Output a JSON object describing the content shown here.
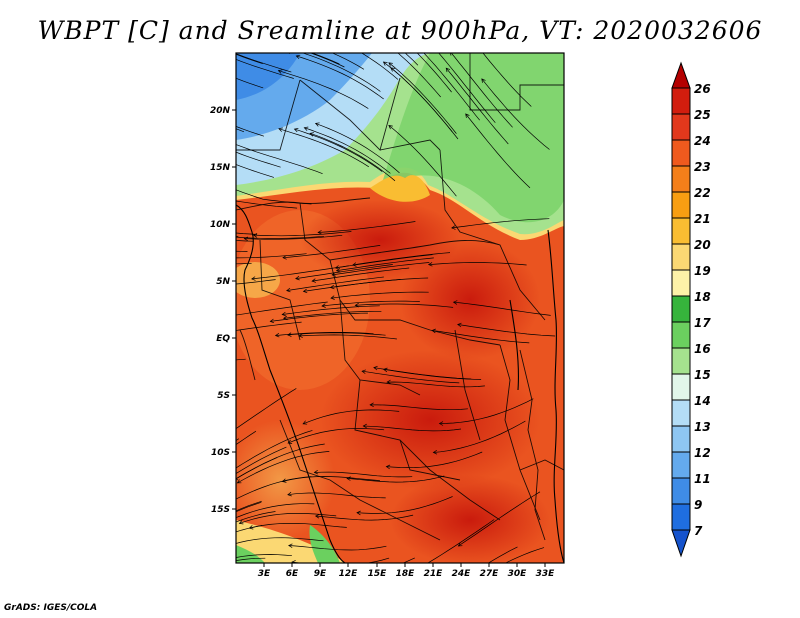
{
  "title": "WBPT [C] and Sreamline at 900hPa, VT: 2020032606",
  "footer": "GrADS: IGES/COLA",
  "map": {
    "lat_labels": [
      "20N",
      "15N",
      "10N",
      "5N",
      "EQ",
      "5S",
      "10S",
      "15S"
    ],
    "lat_values": [
      20,
      15,
      10,
      5,
      0,
      -5,
      -10,
      -15
    ],
    "lon_labels": [
      "3E",
      "6E",
      "9E",
      "12E",
      "15E",
      "18E",
      "21E",
      "24E",
      "27E",
      "30E",
      "33E"
    ],
    "lon_values": [
      3,
      6,
      9,
      12,
      15,
      18,
      21,
      24,
      27,
      30,
      33
    ]
  },
  "colorbar": {
    "labels": [
      "26",
      "25",
      "24",
      "23",
      "22",
      "21",
      "20",
      "19",
      "18",
      "17",
      "16",
      "15",
      "14",
      "13",
      "12",
      "11",
      "9",
      "7"
    ],
    "colors": [
      "#b40000",
      "#d21d0e",
      "#e2381c",
      "#ef5a1e",
      "#f47f1a",
      "#f89e12",
      "#f9bd32",
      "#fbd873",
      "#fdf2a8",
      "#36b43c",
      "#6bd05f",
      "#a5e28e",
      "#e2f6e9",
      "#b4ddf6",
      "#8ec6f2",
      "#64aaed",
      "#3f8ce6",
      "#1f6ee0",
      "#1553cd"
    ]
  }
}
